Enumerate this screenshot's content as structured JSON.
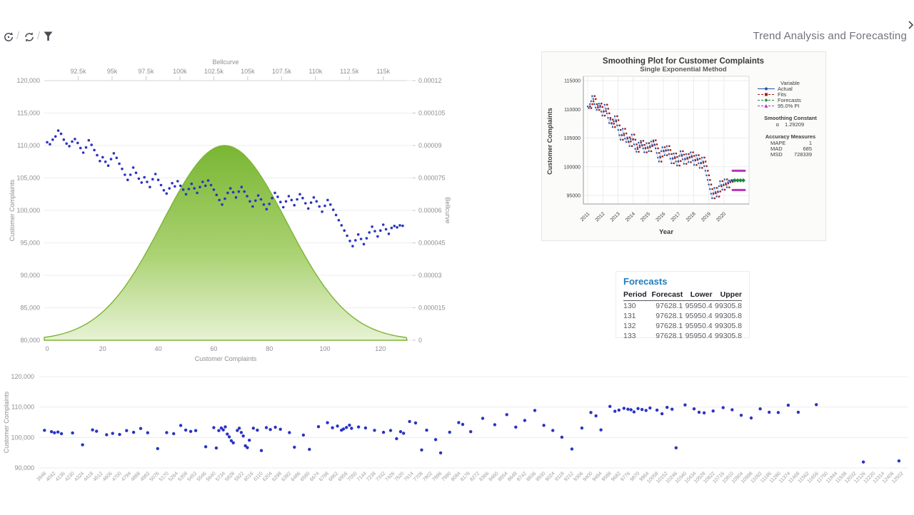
{
  "app": {
    "title": "Trend Analysis and Forecasting"
  },
  "toolbar": {
    "separator": "/",
    "icons": [
      {
        "name": "undo-history-icon"
      },
      {
        "name": "refresh-icon"
      },
      {
        "name": "filter-icon"
      }
    ]
  },
  "colors": {
    "point_blue": "#2a34c2",
    "bell_top": "#74b32a",
    "bell_mid": "#a6d06c",
    "bell_bottom": "#e6f2d2",
    "bell_stroke": "#7db434",
    "grid": "#ededf2",
    "axis_text": "#8f8f96",
    "axis_line": "#d6d6de",
    "mt_actual": "#2853a8",
    "mt_actual_line": "#a3bcd9",
    "mt_fits": "#9c1f1f",
    "mt_forecast": "#1c8c3c",
    "mt_pi": "#b833b8",
    "mt_text": "#3a3a3a",
    "forecast_title_blue": "#1d7dc0"
  },
  "chart_data": [
    {
      "id": "bellcurve_scatter",
      "type": "scatter",
      "top_axis": {
        "label": "Bellcurve",
        "ticks": [
          "92.5k",
          "95k",
          "97.5k",
          "100k",
          "102.5k",
          "105k",
          "107.5k",
          "110k",
          "112.5k",
          "115k"
        ],
        "tick_values": [
          92500,
          95000,
          97500,
          100000,
          102500,
          105000,
          107500,
          110000,
          112500,
          115000
        ],
        "range": [
          90000,
          116750
        ]
      },
      "left_axis": {
        "label": "Customer Complaints",
        "ticks": [
          "120,000",
          "115,000",
          "110,000",
          "105,000",
          "100,000",
          "95,000",
          "90,000",
          "85,000",
          "80,000"
        ],
        "range": [
          80000,
          120000
        ]
      },
      "right_axis": {
        "label": "Bellcurve",
        "ticks": [
          "0.00012",
          "0.000105",
          "0.00009",
          "0.000075",
          "0.00006",
          "0.000045",
          "0.00003",
          "0.000015",
          "0"
        ],
        "range": [
          0,
          0.00012
        ]
      },
      "bottom_axis": {
        "label": "Customer Complaints",
        "ticks": [
          "0",
          "20",
          "40",
          "60",
          "80",
          "100",
          "120"
        ],
        "tick_values": [
          0,
          20,
          40,
          60,
          80,
          100,
          120
        ]
      },
      "bellcurve": {
        "mean": 103300,
        "sigma": 4580,
        "peak": 9e-05
      },
      "points": [
        110500,
        110200,
        110900,
        111400,
        112300,
        111800,
        110900,
        110300,
        109900,
        110600,
        111000,
        110400,
        109600,
        108900,
        109700,
        110800,
        110100,
        109300,
        108500,
        107600,
        108200,
        107500,
        106900,
        107900,
        108800,
        108100,
        107200,
        106400,
        105500,
        104700,
        105500,
        106600,
        105800,
        104900,
        104300,
        105100,
        104400,
        103600,
        104800,
        105600,
        104700,
        103900,
        103100,
        102600,
        103400,
        104200,
        103700,
        104500,
        103800,
        103200,
        102500,
        103300,
        104100,
        103400,
        102700,
        103600,
        104400,
        103800,
        104600,
        103900,
        103200,
        102400,
        101600,
        100900,
        101800,
        102700,
        103400,
        102800,
        102000,
        102900,
        103600,
        102900,
        102200,
        101400,
        100600,
        101500,
        102300,
        101700,
        100900,
        100200,
        101000,
        101900,
        102700,
        102100,
        101300,
        100500,
        101400,
        102200,
        101600,
        100800,
        101700,
        102500,
        101900,
        101100,
        100300,
        101200,
        102000,
        101400,
        100600,
        99800,
        100700,
        101600,
        100900,
        100100,
        99300,
        98500,
        97700,
        96900,
        96100,
        95300,
        94500,
        95400,
        96300,
        95600,
        94800,
        95700,
        96600,
        97500,
        96800,
        96000,
        96900,
        97800,
        97100,
        96400,
        97300,
        97600,
        97400,
        97700,
        97628
      ]
    },
    {
      "id": "smoothing_plot",
      "type": "line",
      "title": "Smoothing Plot for Customer Complaints",
      "subtitle": "Single Exponential Method",
      "xlabel": "Year",
      "ylabel": "Customer Complaints",
      "x_ticks": [
        "2011",
        "2012",
        "2013",
        "2014",
        "2015",
        "2016",
        "2017",
        "2018",
        "2019",
        "2020"
      ],
      "y_ticks": [
        "115000",
        "110000",
        "105000",
        "100000",
        "95000"
      ],
      "y_tick_values": [
        115000,
        110000,
        105000,
        100000,
        95000
      ],
      "legend_title": "Variable",
      "legend": [
        {
          "label": "Actual",
          "marker": "circle"
        },
        {
          "label": "Fits",
          "marker": "square"
        },
        {
          "label": "Forecasts",
          "marker": "diamond"
        },
        {
          "label": "95.0% PI",
          "marker": "triangle"
        }
      ],
      "stats": {
        "smoothing_header": "Smoothing Constant",
        "alpha_label": "α",
        "alpha_value": "1.29209",
        "accuracy_header": "Accuracy Measures",
        "rows": [
          [
            "MAPE",
            "1"
          ],
          [
            "MAD",
            "685"
          ],
          [
            "MSD",
            "728339"
          ]
        ]
      },
      "forecast_value": 97628.1,
      "pi_upper": 99305.8,
      "pi_lower": 95950.4
    },
    {
      "id": "forecasts_table",
      "type": "table",
      "title": "Forecasts",
      "columns": [
        "Period",
        "Forecast",
        "Lower",
        "Upper"
      ],
      "rows": [
        [
          "130",
          "97628.1",
          "95950.4",
          "99305.8"
        ],
        [
          "131",
          "97628.1",
          "95950.4",
          "99305.8"
        ],
        [
          "132",
          "97628.1",
          "95950.4",
          "99305.8"
        ],
        [
          "133",
          "97628.1",
          "95950.4",
          "99305.8"
        ]
      ]
    },
    {
      "id": "bottom_scatter",
      "type": "scatter",
      "ylabel": "Customer Complaints",
      "y_ticks": [
        "120,000",
        "110,000",
        "100,000",
        "90,000"
      ],
      "y_tick_values": [
        120000,
        110000,
        100000,
        90000
      ],
      "x_range": [
        3948,
        12502
      ],
      "x_ticks": [
        "3948",
        "4042",
        "4136",
        "4230",
        "4324",
        "4418",
        "4512",
        "4606",
        "4700",
        "4794",
        "4888",
        "4982",
        "5076",
        "5170",
        "5264",
        "5358",
        "5452",
        "5546",
        "5640",
        "5734",
        "5828",
        "5922",
        "6016",
        "6110",
        "6204",
        "6298",
        "6392",
        "6486",
        "6580",
        "6674",
        "6768",
        "6862",
        "6956",
        "7050",
        "7144",
        "7238",
        "7332",
        "7426",
        "7520",
        "7614",
        "7708",
        "7802",
        "7896",
        "7990",
        "8084",
        "8178",
        "8272",
        "8366",
        "8460",
        "8554",
        "8648",
        "8742",
        "8836",
        "8930",
        "9024",
        "9118",
        "9212",
        "9306",
        "9400",
        "9494",
        "9588",
        "9682",
        "9776",
        "9870",
        "9964",
        "10058",
        "10152",
        "10246",
        "10340",
        "10434",
        "10528",
        "10622",
        "10716",
        "10810",
        "10904",
        "10998",
        "11092",
        "11186",
        "11280",
        "11374",
        "11468",
        "11562",
        "11656",
        "11750",
        "11844",
        "11938",
        "12032",
        "12126",
        "12220",
        "12314",
        "12408",
        "12502"
      ],
      "points": [
        [
          3950,
          102350
        ],
        [
          4020,
          101900
        ],
        [
          4050,
          101550
        ],
        [
          4085,
          101800
        ],
        [
          4120,
          101250
        ],
        [
          4230,
          101500
        ],
        [
          4330,
          97600
        ],
        [
          4430,
          102500
        ],
        [
          4470,
          102050
        ],
        [
          4570,
          100900
        ],
        [
          4630,
          101350
        ],
        [
          4700,
          101000
        ],
        [
          4770,
          102250
        ],
        [
          4840,
          101700
        ],
        [
          4910,
          102950
        ],
        [
          4980,
          101550
        ],
        [
          5080,
          96350
        ],
        [
          5170,
          101600
        ],
        [
          5240,
          101250
        ],
        [
          5310,
          103950
        ],
        [
          5360,
          102450
        ],
        [
          5410,
          102000
        ],
        [
          5460,
          102250
        ],
        [
          5560,
          96950
        ],
        [
          5640,
          103250
        ],
        [
          5665,
          96550
        ],
        [
          5690,
          102250
        ],
        [
          5715,
          103100
        ],
        [
          5735,
          102500
        ],
        [
          5755,
          103500
        ],
        [
          5775,
          101100
        ],
        [
          5795,
          100200
        ],
        [
          5815,
          98950
        ],
        [
          5835,
          98250
        ],
        [
          5875,
          102300
        ],
        [
          5895,
          103050
        ],
        [
          5915,
          101650
        ],
        [
          5935,
          100500
        ],
        [
          5955,
          97300
        ],
        [
          5975,
          96650
        ],
        [
          5995,
          99100
        ],
        [
          6035,
          103050
        ],
        [
          6075,
          102400
        ],
        [
          6115,
          95700
        ],
        [
          6165,
          103250
        ],
        [
          6205,
          102600
        ],
        [
          6255,
          103350
        ],
        [
          6305,
          102700
        ],
        [
          6395,
          101600
        ],
        [
          6445,
          96800
        ],
        [
          6535,
          100800
        ],
        [
          6595,
          96100
        ],
        [
          6685,
          103550
        ],
        [
          6775,
          104850
        ],
        [
          6825,
          103200
        ],
        [
          6875,
          103750
        ],
        [
          6915,
          102400
        ],
        [
          6935,
          102800
        ],
        [
          6965,
          103300
        ],
        [
          6995,
          104050
        ],
        [
          7015,
          103000
        ],
        [
          7085,
          103450
        ],
        [
          7155,
          103150
        ],
        [
          7245,
          102350
        ],
        [
          7335,
          101700
        ],
        [
          7405,
          102300
        ],
        [
          7465,
          99600
        ],
        [
          7505,
          101900
        ],
        [
          7535,
          101400
        ],
        [
          7595,
          105250
        ],
        [
          7655,
          104800
        ],
        [
          7715,
          95900
        ],
        [
          7765,
          102400
        ],
        [
          7855,
          99300
        ],
        [
          7905,
          94950
        ],
        [
          7995,
          101750
        ],
        [
          8085,
          104900
        ],
        [
          8125,
          104300
        ],
        [
          8205,
          101900
        ],
        [
          8325,
          106300
        ],
        [
          8445,
          104200
        ],
        [
          8565,
          107500
        ],
        [
          8655,
          103400
        ],
        [
          8745,
          105600
        ],
        [
          8845,
          108900
        ],
        [
          8935,
          104000
        ],
        [
          9025,
          102300
        ],
        [
          9115,
          100100
        ],
        [
          9215,
          96200
        ],
        [
          9315,
          103100
        ],
        [
          9405,
          108200
        ],
        [
          9455,
          107100
        ],
        [
          9505,
          102500
        ],
        [
          9595,
          110200
        ],
        [
          9645,
          108600
        ],
        [
          9685,
          109000
        ],
        [
          9735,
          109600
        ],
        [
          9775,
          109300
        ],
        [
          9805,
          109100
        ],
        [
          9835,
          108400
        ],
        [
          9875,
          109500
        ],
        [
          9915,
          109200
        ],
        [
          9955,
          108900
        ],
        [
          9995,
          109700
        ],
        [
          10065,
          109000
        ],
        [
          10115,
          107800
        ],
        [
          10165,
          109900
        ],
        [
          10215,
          109300
        ],
        [
          10255,
          96600
        ],
        [
          10345,
          110700
        ],
        [
          10435,
          109400
        ],
        [
          10485,
          108300
        ],
        [
          10535,
          108100
        ],
        [
          10625,
          108700
        ],
        [
          10725,
          109800
        ],
        [
          10815,
          109100
        ],
        [
          10905,
          107300
        ],
        [
          11005,
          106400
        ],
        [
          11095,
          109400
        ],
        [
          11185,
          108300
        ],
        [
          11275,
          108200
        ],
        [
          11375,
          110600
        ],
        [
          11475,
          108300
        ],
        [
          11655,
          110800
        ],
        [
          12125,
          91950
        ],
        [
          12480,
          92300
        ]
      ]
    }
  ]
}
